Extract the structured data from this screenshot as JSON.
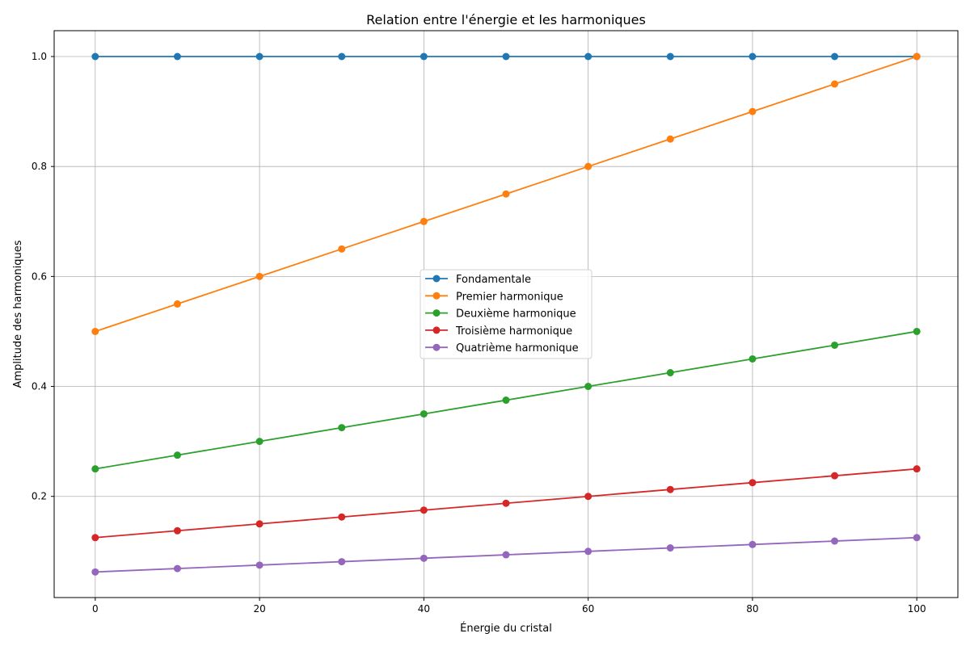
{
  "chart_data": {
    "type": "line",
    "title": "Relation entre l'énergie et les harmoniques",
    "xlabel": "Énergie du cristal",
    "ylabel": "Amplitude des harmoniques",
    "x": [
      0,
      10,
      20,
      30,
      40,
      50,
      60,
      70,
      80,
      90,
      100
    ],
    "xlim": [
      -5,
      105
    ],
    "ylim": [
      0.016,
      1.047
    ],
    "xticks": [
      0,
      20,
      40,
      60,
      80,
      100
    ],
    "xtick_labels": [
      "0",
      "20",
      "40",
      "60",
      "80",
      "100"
    ],
    "yticks": [
      0.2,
      0.4,
      0.6,
      0.8,
      1.0
    ],
    "ytick_labels": [
      "0.2",
      "0.4",
      "0.6",
      "0.8",
      "1.0"
    ],
    "grid": true,
    "legend_position": "center",
    "series": [
      {
        "name": "Fondamentale",
        "color": "#1f77b4",
        "values": [
          1.0,
          1.0,
          1.0,
          1.0,
          1.0,
          1.0,
          1.0,
          1.0,
          1.0,
          1.0,
          1.0
        ]
      },
      {
        "name": "Premier harmonique",
        "color": "#ff7f0e",
        "values": [
          0.5,
          0.55,
          0.6,
          0.65,
          0.7,
          0.75,
          0.8,
          0.85,
          0.9,
          0.95,
          1.0
        ]
      },
      {
        "name": "Deuxième harmonique",
        "color": "#2ca02c",
        "values": [
          0.25,
          0.275,
          0.3,
          0.325,
          0.35,
          0.375,
          0.4,
          0.425,
          0.45,
          0.475,
          0.5
        ]
      },
      {
        "name": "Troisième harmonique",
        "color": "#d62728",
        "values": [
          0.125,
          0.1375,
          0.15,
          0.1625,
          0.175,
          0.1875,
          0.2,
          0.2125,
          0.225,
          0.2375,
          0.25
        ]
      },
      {
        "name": "Quatrième harmonique",
        "color": "#9467bd",
        "values": [
          0.0625,
          0.06875,
          0.075,
          0.08125,
          0.0875,
          0.09375,
          0.1,
          0.10625,
          0.1125,
          0.11875,
          0.125
        ]
      }
    ]
  }
}
